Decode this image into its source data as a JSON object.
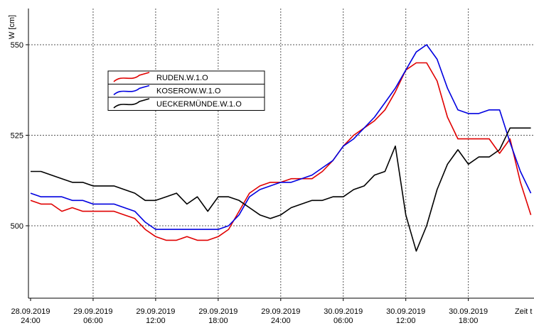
{
  "chart_data": {
    "type": "line",
    "y_label": "W [cm]",
    "x_label": "Zeit t",
    "x": [
      0,
      1,
      2,
      3,
      4,
      5,
      6,
      7,
      8,
      9,
      10,
      11,
      12,
      13,
      14,
      15,
      16,
      17,
      18,
      19,
      20,
      21,
      22,
      23,
      24,
      25,
      26,
      27,
      28,
      29,
      30,
      31,
      32,
      33,
      34,
      35,
      36,
      37,
      38,
      39,
      40,
      41,
      42,
      43,
      44,
      45,
      46,
      47,
      48
    ],
    "series": [
      {
        "name": "RUDEN.W.1.O",
        "color": "#e00000",
        "values": [
          507,
          506,
          506,
          504,
          505,
          504,
          504,
          504,
          504,
          503,
          502,
          499,
          497,
          496,
          496,
          497,
          496,
          496,
          497,
          499,
          504,
          509,
          511,
          512,
          512,
          513,
          513,
          513,
          515,
          518,
          522,
          525,
          527,
          529,
          532,
          537,
          543,
          545,
          545,
          540,
          530,
          524,
          524,
          524,
          524,
          520,
          524,
          512,
          503
        ]
      },
      {
        "name": "KOSEROW.W.1.O",
        "color": "#0000e0",
        "values": [
          509,
          508,
          508,
          508,
          507,
          507,
          506,
          506,
          506,
          505,
          504,
          501,
          499,
          499,
          499,
          499,
          499,
          499,
          499,
          500,
          503,
          508,
          510,
          511,
          512,
          512,
          513,
          514,
          516,
          518,
          522,
          524,
          527,
          530,
          534,
          538,
          543,
          548,
          550,
          546,
          538,
          532,
          531,
          531,
          532,
          532,
          523,
          515,
          509
        ]
      },
      {
        "name": "UECKERMÜNDE.W.1.O",
        "color": "#000000",
        "values": [
          515,
          515,
          514,
          513,
          512,
          512,
          511,
          511,
          511,
          510,
          509,
          507,
          507,
          508,
          509,
          506,
          508,
          504,
          508,
          508,
          507,
          505,
          503,
          502,
          503,
          505,
          506,
          507,
          507,
          508,
          508,
          510,
          511,
          514,
          515,
          522,
          503,
          493,
          500,
          510,
          517,
          521,
          517,
          519,
          519,
          521,
          527,
          527,
          527
        ]
      }
    ],
    "xlim": [
      0,
      48.3
    ],
    "xticks": [
      {
        "value": 0,
        "label": [
          "28.09.2019",
          "24:00"
        ]
      },
      {
        "value": 6,
        "label": [
          "29.09.2019",
          "06:00"
        ]
      },
      {
        "value": 12,
        "label": [
          "29.09.2019",
          "12:00"
        ]
      },
      {
        "value": 18,
        "label": [
          "29.09.2019",
          "18:00"
        ]
      },
      {
        "value": 24,
        "label": [
          "29.09.2019",
          "24:00"
        ]
      },
      {
        "value": 30,
        "label": [
          "30.09.2019",
          "06:00"
        ]
      },
      {
        "value": 36,
        "label": [
          "30.09.2019",
          "12:00"
        ]
      },
      {
        "value": 42,
        "label": [
          "30.09.2019",
          "18:00"
        ]
      }
    ],
    "ylim": [
      480,
      560
    ],
    "yticks": [
      500,
      525,
      550
    ],
    "grid": true
  }
}
